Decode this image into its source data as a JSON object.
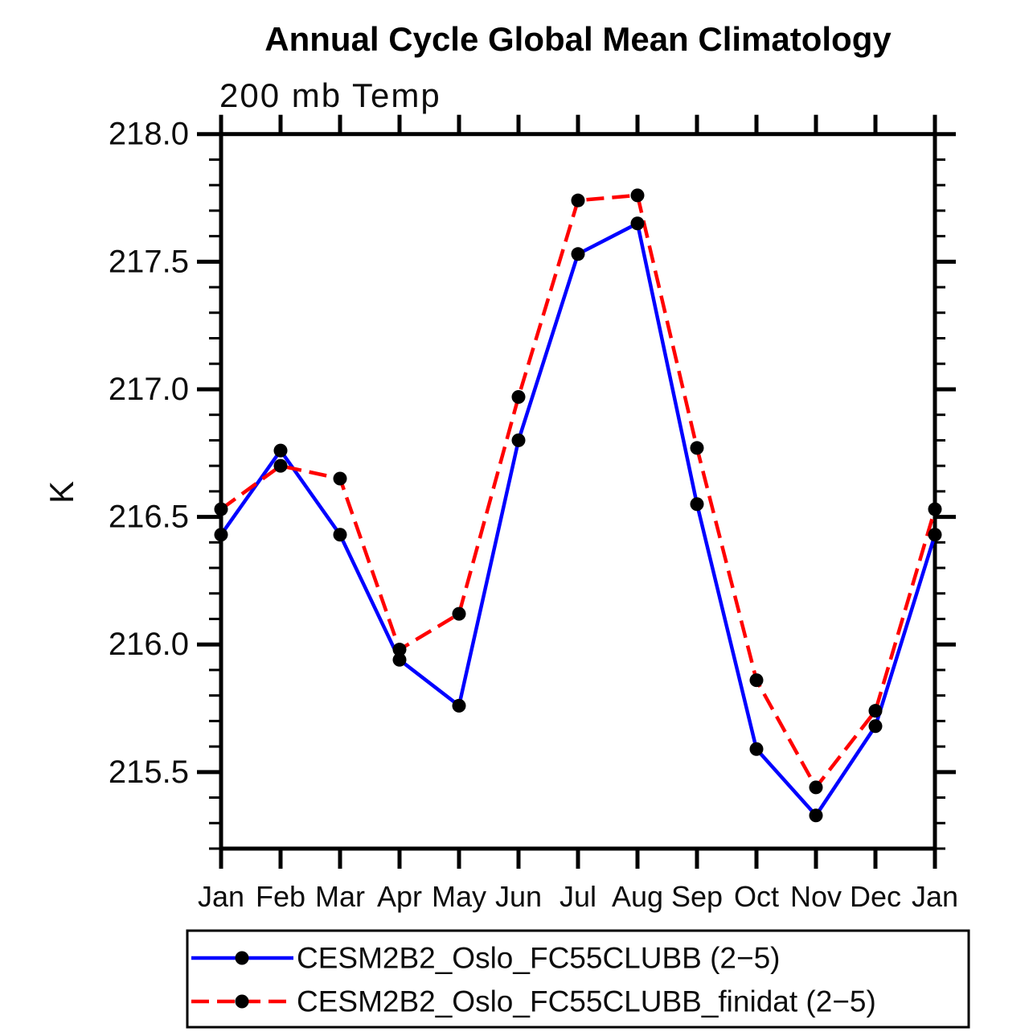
{
  "chart": {
    "title": "Annual Cycle Global Mean Climatology",
    "subtitle": "200 mb Temp",
    "ylabel": "K"
  },
  "legend": {
    "position": "bottom"
  },
  "chart_data": {
    "type": "line",
    "title": "Annual Cycle Global Mean Climatology",
    "subtitle": "200 mb Temp",
    "xlabel": "",
    "ylabel": "K",
    "categories": [
      "Jan",
      "Feb",
      "Mar",
      "Apr",
      "May",
      "Jun",
      "Jul",
      "Aug",
      "Sep",
      "Oct",
      "Nov",
      "Dec",
      "Jan"
    ],
    "ylim": [
      215.2,
      218.0
    ],
    "ytick_major": [
      215.5,
      216.0,
      216.5,
      217.0,
      217.5,
      218.0
    ],
    "ytick_labels": [
      "215.5",
      "216.0",
      "216.5",
      "217.0",
      "217.5",
      "218.0"
    ],
    "minor_tick_interval": 0.1,
    "grid": false,
    "legend_position": "bottom",
    "series": [
      {
        "name": "CESM2B2_Oslo_FC55CLUBB (2−5)",
        "color": "#0000ff",
        "line_style": "solid",
        "marker": "filled-circle",
        "marker_color": "#000000",
        "values": [
          216.43,
          216.76,
          216.43,
          215.94,
          215.76,
          216.8,
          217.53,
          217.65,
          216.55,
          215.59,
          215.33,
          215.68,
          216.43
        ]
      },
      {
        "name": "CESM2B2_Oslo_FC55CLUBB_finidat (2−5)",
        "color": "#ff0000",
        "line_style": "dashed",
        "marker": "filled-circle",
        "marker_color": "#000000",
        "values": [
          216.53,
          216.7,
          216.65,
          215.98,
          216.12,
          216.97,
          217.74,
          217.76,
          216.77,
          215.86,
          215.44,
          215.74,
          216.53
        ]
      }
    ]
  }
}
